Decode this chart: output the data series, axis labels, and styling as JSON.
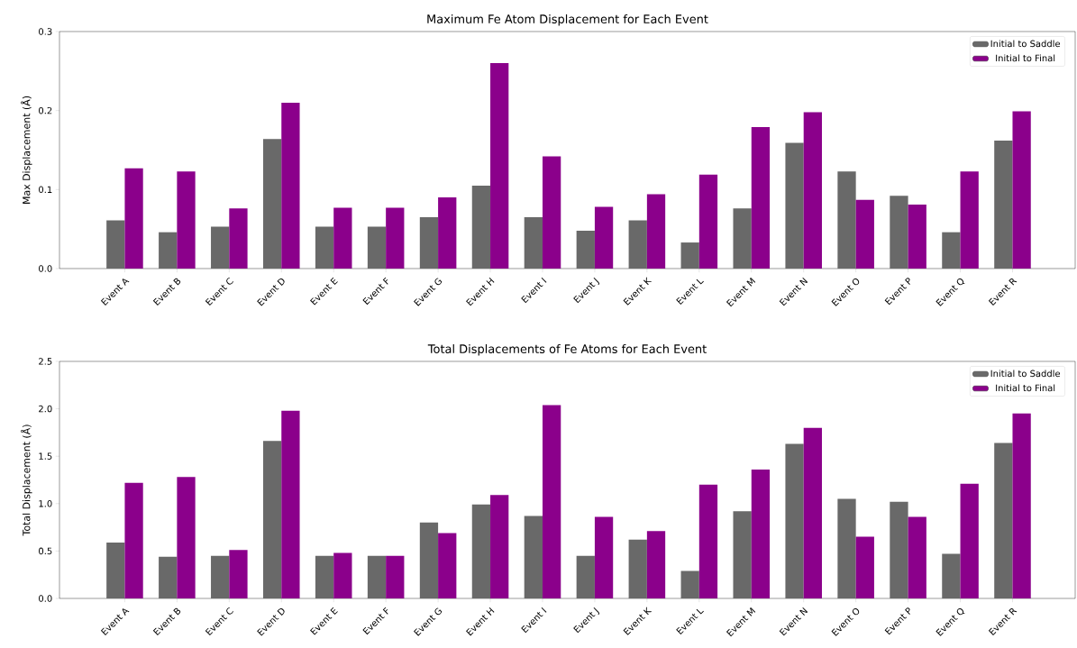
{
  "chart_data": [
    {
      "type": "bar",
      "title": "Maximum Fe Atom Displacement for Each Event",
      "ylabel": "Max Displacement (Å)",
      "categories": [
        "Event A",
        "Event B",
        "Event C",
        "Event D",
        "Event E",
        "Event F",
        "Event G",
        "Event H",
        "Event I",
        "Event J",
        "Event K",
        "Event L",
        "Event M",
        "Event N",
        "Event O",
        "Event P",
        "Event Q",
        "Event R"
      ],
      "series": [
        {
          "name": "Initial to Saddle",
          "color": "#696969",
          "values": [
            0.061,
            0.046,
            0.053,
            0.164,
            0.053,
            0.053,
            0.065,
            0.105,
            0.065,
            0.048,
            0.061,
            0.033,
            0.076,
            0.159,
            0.123,
            0.092,
            0.046,
            0.162
          ]
        },
        {
          "name": "Initial to Final",
          "color": "#8b008b",
          "values": [
            0.127,
            0.123,
            0.076,
            0.21,
            0.077,
            0.077,
            0.09,
            0.26,
            0.142,
            0.078,
            0.094,
            0.119,
            0.179,
            0.198,
            0.087,
            0.081,
            0.123,
            0.199
          ]
        }
      ],
      "ylim": [
        0,
        0.3
      ],
      "yticks": [
        {
          "value": 0,
          "label": "0.0"
        },
        0.1,
        0.2,
        0.3
      ],
      "legend": "top right"
    },
    {
      "type": "bar",
      "title": "Total Displacements of Fe Atoms for Each Event",
      "ylabel": "Total Displacement (Å)",
      "categories": [
        "Event A",
        "Event B",
        "Event C",
        "Event D",
        "Event E",
        "Event F",
        "Event G",
        "Event H",
        "Event I",
        "Event J",
        "Event K",
        "Event L",
        "Event M",
        "Event N",
        "Event O",
        "Event P",
        "Event Q",
        "Event R"
      ],
      "series": [
        {
          "name": "Initial to Saddle",
          "color": "#696969",
          "values": [
            0.59,
            0.44,
            0.45,
            1.66,
            0.45,
            0.45,
            0.8,
            0.99,
            0.87,
            0.45,
            0.62,
            0.29,
            0.92,
            1.63,
            1.05,
            1.02,
            0.47,
            1.64
          ]
        },
        {
          "name": "Initial to Final",
          "color": "#8b008b",
          "values": [
            1.22,
            1.28,
            0.51,
            1.98,
            0.48,
            0.45,
            0.69,
            1.09,
            2.04,
            0.86,
            0.71,
            1.2,
            1.36,
            1.8,
            0.65,
            0.86,
            1.21,
            1.95
          ]
        }
      ],
      "ylim": [
        0,
        2.5
      ],
      "yticks": [
        {
          "value": 0,
          "label": "0.0"
        },
        0.5,
        {
          "value": 1,
          "label": "1.0"
        },
        1.5,
        {
          "value": 2,
          "label": "2.0"
        },
        2.5
      ],
      "legend": "top right"
    }
  ]
}
